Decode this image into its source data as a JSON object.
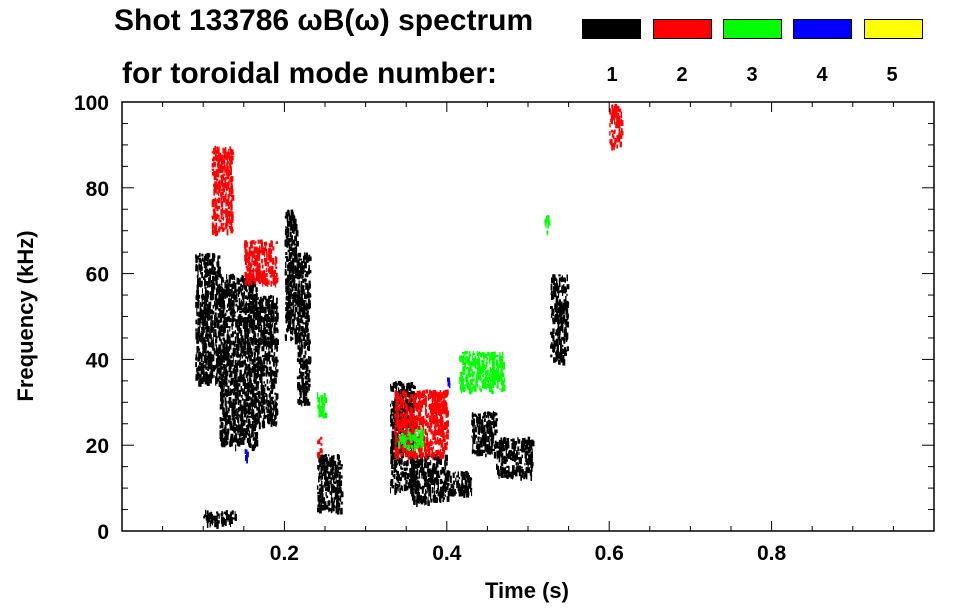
{
  "header": {
    "title_line1": "Shot 133786 ωB(ω) spectrum",
    "title_line2": "for toroidal mode number:"
  },
  "legend": [
    {
      "label": "1",
      "color": "#000000"
    },
    {
      "label": "2",
      "color": "#ff0000"
    },
    {
      "label": "3",
      "color": "#00ff00"
    },
    {
      "label": "4",
      "color": "#0000ff"
    },
    {
      "label": "5",
      "color": "#ffff00"
    }
  ],
  "chart_data": {
    "type": "heatmap",
    "title": "Shot 133786 ωB(ω) spectrum",
    "xlabel": "Time (s)",
    "ylabel": "Frequency (kHz)",
    "xlim": [
      0.0,
      1.0
    ],
    "ylim": [
      0,
      100
    ],
    "xticks": [
      0.2,
      0.4,
      0.6,
      0.8
    ],
    "xtick_labels": [
      "0.2",
      "0.4",
      "0.6",
      "0.8"
    ],
    "yticks": [
      0,
      20,
      40,
      60,
      80,
      100
    ],
    "ytick_labels": [
      "0",
      "20",
      "40",
      "60",
      "80",
      "100"
    ],
    "grid": false,
    "legend_placement": "top-right",
    "series": [
      {
        "name": "1",
        "color": "#000000",
        "regions": [
          {
            "t": [
              0.09,
              0.12
            ],
            "f": [
              35,
              65
            ]
          },
          {
            "t": [
              0.12,
              0.165
            ],
            "f": [
              20,
              60
            ]
          },
          {
            "t": [
              0.165,
              0.19
            ],
            "f": [
              25,
              55
            ]
          },
          {
            "t": [
              0.2,
              0.215
            ],
            "f": [
              45,
              75
            ]
          },
          {
            "t": [
              0.215,
              0.23
            ],
            "f": [
              30,
              65
            ]
          },
          {
            "t": [
              0.24,
              0.27
            ],
            "f": [
              5,
              18
            ]
          },
          {
            "t": [
              0.33,
              0.36
            ],
            "f": [
              10,
              35
            ]
          },
          {
            "t": [
              0.355,
              0.4
            ],
            "f": [
              7,
              18
            ]
          },
          {
            "t": [
              0.4,
              0.43
            ],
            "f": [
              9,
              14
            ]
          },
          {
            "t": [
              0.43,
              0.46
            ],
            "f": [
              18,
              28
            ]
          },
          {
            "t": [
              0.46,
              0.505
            ],
            "f": [
              13,
              22
            ]
          },
          {
            "t": [
              0.527,
              0.548
            ],
            "f": [
              40,
              60
            ]
          },
          {
            "t": [
              0.1,
              0.14
            ],
            "f": [
              2,
              5
            ]
          }
        ]
      },
      {
        "name": "2",
        "color": "#ff0000",
        "regions": [
          {
            "t": [
              0.11,
              0.135
            ],
            "f": [
              70,
              90
            ]
          },
          {
            "t": [
              0.15,
              0.19
            ],
            "f": [
              58,
              68
            ]
          },
          {
            "t": [
              0.335,
              0.4
            ],
            "f": [
              18,
              33
            ]
          },
          {
            "t": [
              0.6,
              0.615
            ],
            "f": [
              90,
              100
            ]
          },
          {
            "t": [
              0.24,
              0.245
            ],
            "f": [
              18,
              22
            ]
          }
        ]
      },
      {
        "name": "3",
        "color": "#00ff00",
        "regions": [
          {
            "t": [
              0.34,
              0.37
            ],
            "f": [
              20,
              24
            ]
          },
          {
            "t": [
              0.415,
              0.47
            ],
            "f": [
              33,
              42
            ]
          },
          {
            "t": [
              0.52,
              0.525
            ],
            "f": [
              70,
              74
            ]
          },
          {
            "t": [
              0.24,
              0.25
            ],
            "f": [
              27,
              33
            ]
          }
        ]
      },
      {
        "name": "4",
        "color": "#0000ff",
        "regions": [
          {
            "t": [
              0.15,
              0.153
            ],
            "f": [
              17,
              20
            ]
          },
          {
            "t": [
              0.4,
              0.403
            ],
            "f": [
              34,
              36
            ]
          }
        ]
      },
      {
        "name": "5",
        "color": "#ffff00",
        "regions": []
      }
    ]
  }
}
